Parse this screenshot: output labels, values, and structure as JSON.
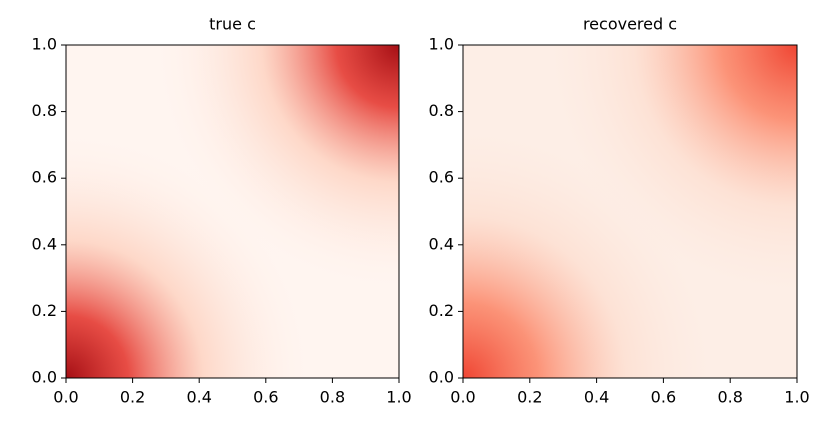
{
  "chart_data": [
    {
      "type": "heatmap",
      "title": "true c",
      "xlim": [
        0,
        1
      ],
      "ylim": [
        0,
        1
      ],
      "xticks": [
        {
          "value": 0,
          "label": "0.0"
        },
        {
          "value": 0.2,
          "label": "0.2"
        },
        {
          "value": 0.4,
          "label": "0.4"
        },
        {
          "value": 0.6,
          "label": "0.6"
        },
        {
          "value": 0.8,
          "label": "0.8"
        },
        {
          "value": 1,
          "label": "1.0"
        }
      ],
      "yticks": [
        {
          "value": 0,
          "label": "0.0"
        },
        {
          "value": 0.2,
          "label": "0.2"
        },
        {
          "value": 0.4,
          "label": "0.4"
        },
        {
          "value": 0.6,
          "label": "0.6"
        },
        {
          "value": 0.8,
          "label": "0.8"
        },
        {
          "value": 1,
          "label": "1.0"
        }
      ]
    },
    {
      "type": "heatmap",
      "title": "recovered c",
      "xlim": [
        0,
        1
      ],
      "ylim": [
        0,
        1
      ],
      "xticks": [
        {
          "value": 0,
          "label": "0.0"
        },
        {
          "value": 0.2,
          "label": "0.2"
        },
        {
          "value": 0.4,
          "label": "0.4"
        },
        {
          "value": 0.6,
          "label": "0.6"
        },
        {
          "value": 0.8,
          "label": "0.8"
        },
        {
          "value": 1,
          "label": "1.0"
        }
      ],
      "yticks": [
        {
          "value": 0,
          "label": "0.0"
        },
        {
          "value": 0.2,
          "label": "0.2"
        },
        {
          "value": 0.4,
          "label": "0.4"
        },
        {
          "value": 0.6,
          "label": "0.6"
        },
        {
          "value": 0.8,
          "label": "0.8"
        },
        {
          "value": 1,
          "label": "1.0"
        }
      ]
    }
  ]
}
